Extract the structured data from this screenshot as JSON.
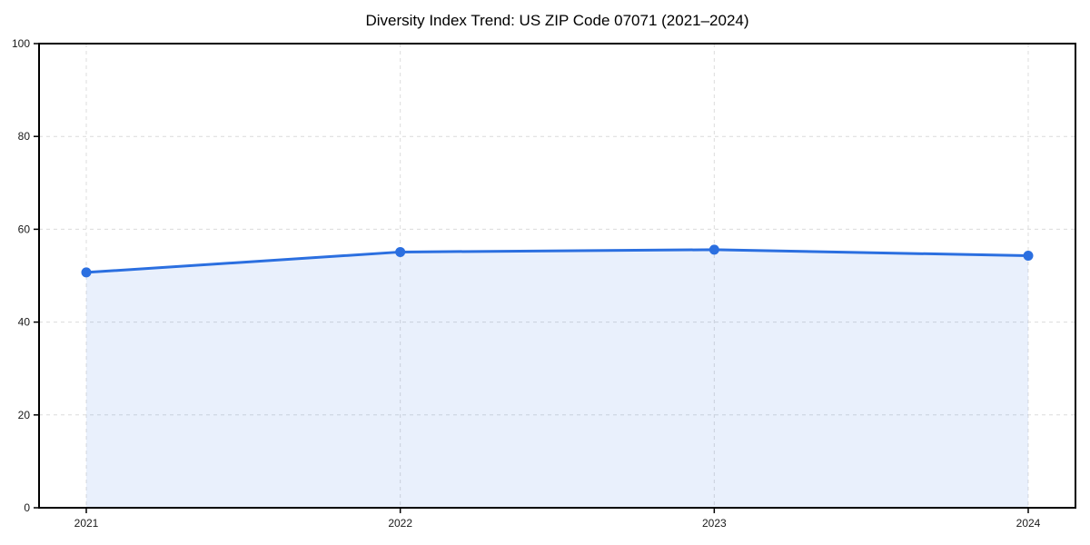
{
  "title": "Diversity Index Trend: US ZIP Code 07071 (2021–2024)",
  "chart_data": {
    "type": "line",
    "title": "Diversity Index Trend: US ZIP Code 07071 (2021–2024)",
    "categories": [
      "2021",
      "2022",
      "2023",
      "2024"
    ],
    "series": [
      {
        "name": "Diversity Index",
        "values": [
          50.7,
          55.1,
          55.6,
          54.3
        ]
      }
    ],
    "xlabel": "",
    "ylabel": "",
    "ylim": [
      0,
      100
    ],
    "yticks": [
      0,
      20,
      40,
      60,
      80,
      100
    ],
    "grid": true,
    "grid_style": "dashed",
    "grid_color": "#dcdcdc",
    "legend_position": "none",
    "area_fill": true,
    "line_color": "#2b6fe0",
    "fill_opacity": 0.1,
    "marker": "circle",
    "spine_color": "#000000",
    "background_color": "#ffffff"
  }
}
